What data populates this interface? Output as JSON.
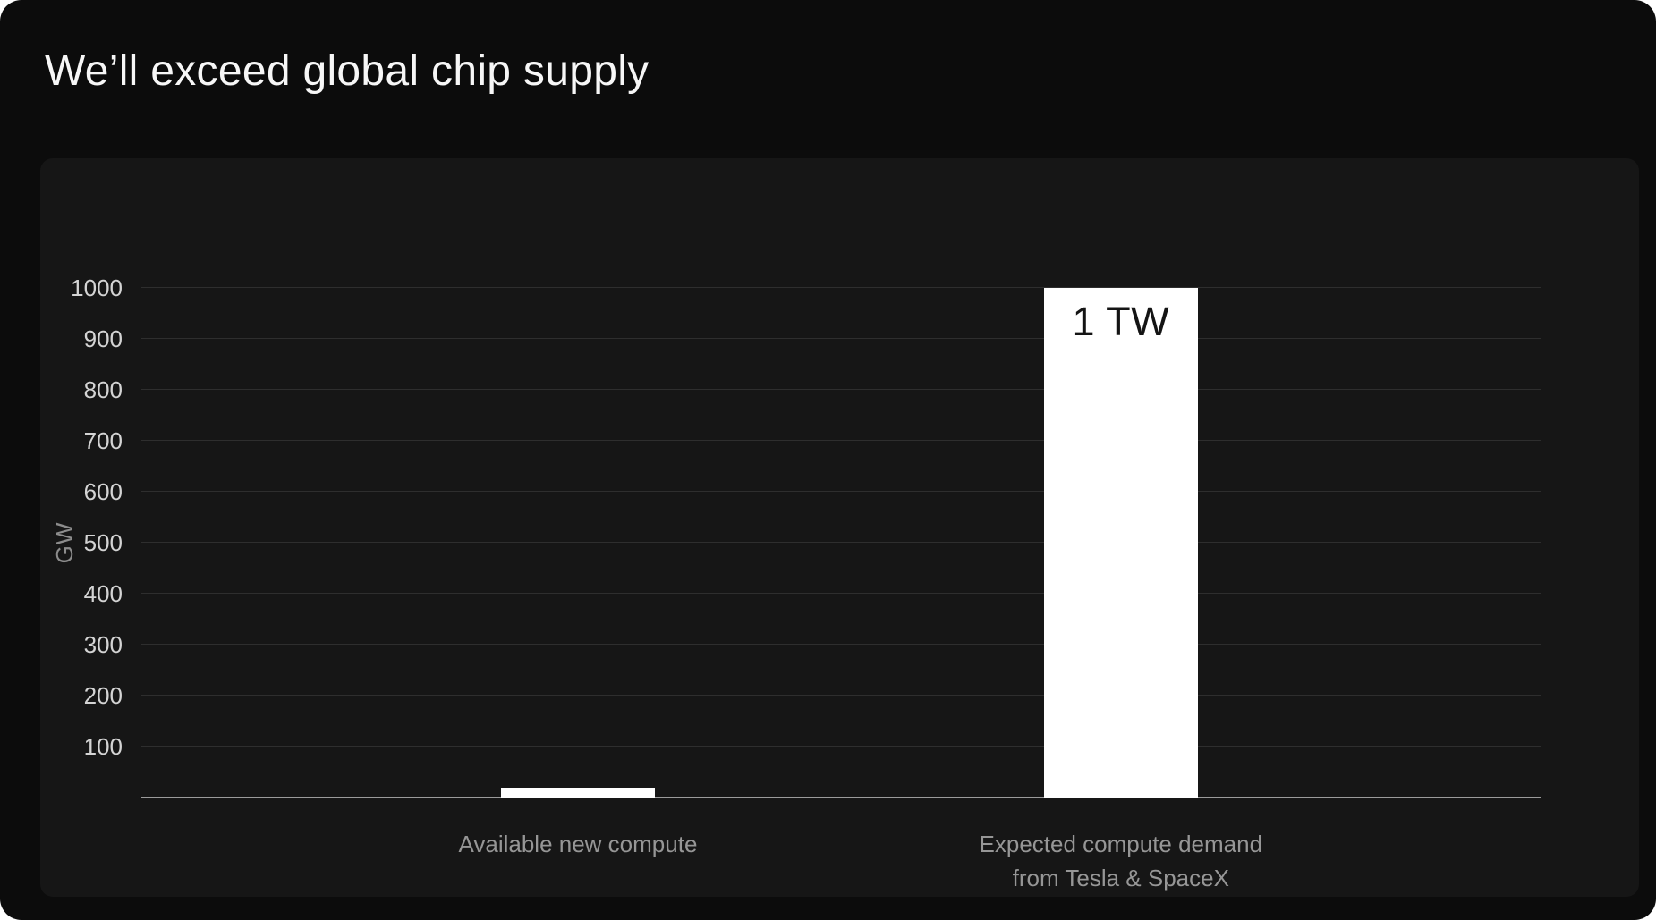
{
  "slide": {
    "title": "We’ll exceed global chip supply"
  },
  "chart_data": {
    "type": "bar",
    "title": "We’ll exceed global chip supply",
    "xlabel": "",
    "ylabel": "GW",
    "ylim": [
      0,
      1000
    ],
    "yticks": [
      100,
      200,
      300,
      400,
      500,
      600,
      700,
      800,
      900,
      1000
    ],
    "grid": true,
    "legend": false,
    "categories": [
      "Available new compute",
      "Expected compute demand from Tesla & SpaceX"
    ],
    "values": [
      20,
      1000
    ],
    "points": [
      {
        "name": "available-new-compute",
        "category_lines": [
          "Available new compute"
        ],
        "value": 20,
        "value_label": ""
      },
      {
        "name": "expected-compute-demand",
        "category_lines": [
          "Expected compute demand",
          "from Tesla & SpaceX"
        ],
        "value": 1000,
        "value_label": "1 TW"
      }
    ],
    "colors": {
      "background": "#0c0c0c",
      "panel_background": "#161616",
      "bar_fill": "#ffffff",
      "gridline": "#2e2e2e",
      "axis_line": "#9b9b9b",
      "tick_text": "#d4d4d4",
      "category_text": "#969696",
      "ylabel_text": "#8c8c8c",
      "title_text": "#f7f7f7",
      "value_label_text": "#141414"
    }
  }
}
